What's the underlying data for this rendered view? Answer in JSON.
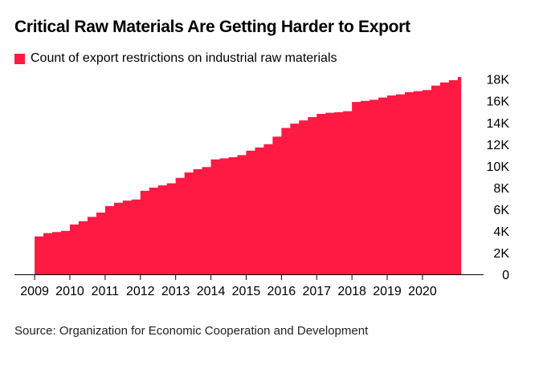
{
  "title": "Critical Raw Materials Are Getting Harder to Export",
  "legend": {
    "label": "Count of export restrictions on industrial raw materials",
    "color": "#ff1a43"
  },
  "source": "Source: Organization for Economic Cooperation and Development",
  "chart_data": {
    "type": "area",
    "title": "Critical Raw Materials Are Getting Harder to Export",
    "series": [
      {
        "name": "Count of export restrictions on industrial raw materials",
        "color": "#ff1a43",
        "x": [
          2009.0,
          2009.25,
          2009.5,
          2009.75,
          2010.0,
          2010.25,
          2010.5,
          2010.75,
          2011.0,
          2011.25,
          2011.5,
          2011.75,
          2012.0,
          2012.25,
          2012.5,
          2012.75,
          2013.0,
          2013.25,
          2013.5,
          2013.75,
          2014.0,
          2014.25,
          2014.5,
          2014.75,
          2015.0,
          2015.25,
          2015.5,
          2015.75,
          2016.0,
          2016.25,
          2016.5,
          2016.75,
          2017.0,
          2017.25,
          2017.5,
          2017.75,
          2018.0,
          2018.25,
          2018.5,
          2018.75,
          2019.0,
          2019.25,
          2019.5,
          2019.75,
          2020.0,
          2020.25,
          2020.5,
          2020.75,
          2021.0
        ],
        "values": [
          3500,
          3800,
          3900,
          4000,
          4600,
          4900,
          5300,
          5700,
          6300,
          6600,
          6800,
          6900,
          7700,
          8000,
          8200,
          8400,
          8900,
          9400,
          9700,
          9900,
          10600,
          10700,
          10800,
          11000,
          11400,
          11700,
          12000,
          12700,
          13500,
          13900,
          14200,
          14500,
          14800,
          14900,
          14950,
          15050,
          15900,
          16000,
          16100,
          16300,
          16500,
          16600,
          16800,
          16900,
          17000,
          17400,
          17700,
          17900,
          18200
        ]
      }
    ],
    "x_tick_labels": [
      "2009",
      "2010",
      "2011",
      "2012",
      "2013",
      "2014",
      "2015",
      "2016",
      "2017",
      "2018",
      "2019",
      "2020"
    ],
    "y_tick_labels": [
      "0",
      "2K",
      "4K",
      "6K",
      "8K",
      "10K",
      "12K",
      "14K",
      "16K",
      "18K"
    ],
    "y_ticks": [
      0,
      2000,
      4000,
      6000,
      8000,
      10000,
      12000,
      14000,
      16000,
      18000
    ],
    "xlim": [
      2008.93,
      2021.3
    ],
    "ylim": [
      0,
      18200
    ],
    "y_axis_side": "right",
    "grid": false,
    "legend_position": "top-left"
  }
}
